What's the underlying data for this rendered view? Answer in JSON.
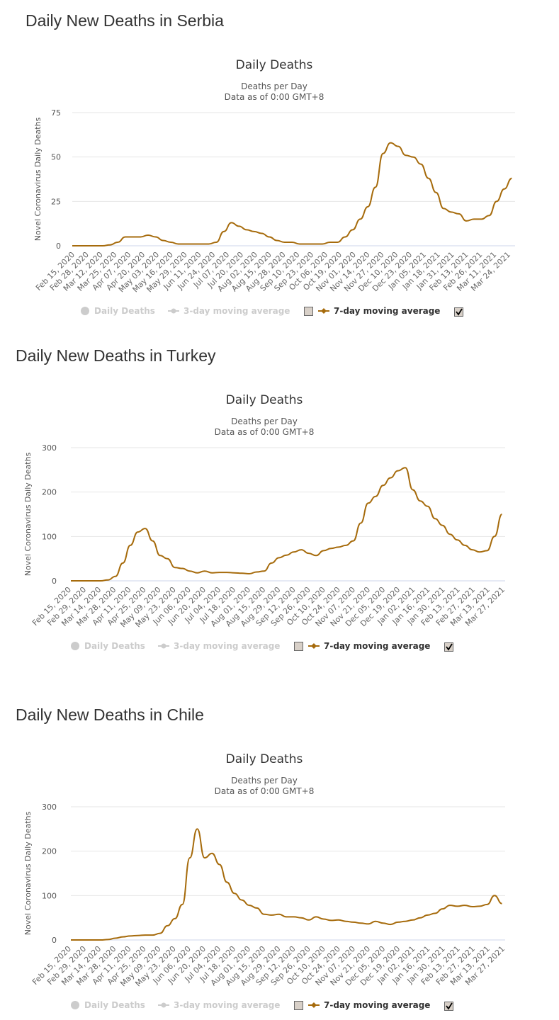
{
  "colors": {
    "series": "#a66b0c",
    "grid": "#e6e6e6",
    "legend_hidden": "#cccccc"
  },
  "chart_data": [
    {
      "type": "line",
      "heading": "Daily New Deaths in Serbia",
      "title": "Daily Deaths",
      "subtitle_lines": [
        "Deaths per Day",
        "Data as of 0:00 GMT+8"
      ],
      "ylabel": "Novel Coronavirus Daily Deaths",
      "ylim": [
        0,
        75
      ],
      "yticks": [
        "0",
        "25",
        "50",
        "75"
      ],
      "x_start": "2020-02-15",
      "x_step_days": 7,
      "x_tick_labels": [
        "Feb 15, 2020",
        "Feb 28, 2020",
        "Mar 12, 2020",
        "Mar 25, 2020",
        "Apr 07, 2020",
        "Apr 20, 2020",
        "May 03, 2020",
        "May 16, 2020",
        "May 29, 2020",
        "Jun 11, 2020",
        "Jun 24, 2020",
        "Jul 07, 2020",
        "Jul 20, 2020",
        "Aug 02, 2020",
        "Aug 15, 2020",
        "Aug 28, 2020",
        "Sep 10, 2020",
        "Sep 23, 2020",
        "Oct 06, 2020",
        "Oct 19, 2020",
        "Nov 01, 2020",
        "Nov 14, 2020",
        "Nov 27, 2020",
        "Dec 10, 2020",
        "Dec 23, 2020",
        "Jan 05, 2021",
        "Jan 18, 2021",
        "Jan 31, 2021",
        "Feb 13, 2021",
        "Feb 26, 2021",
        "Mar 11, 2021",
        "Mar 24, 2021"
      ],
      "legend": [
        {
          "label": "Daily Deaths",
          "visible": false,
          "marker": "circle"
        },
        {
          "label": "3-day moving average",
          "visible": false,
          "marker": "line-circle",
          "checkbox": false
        },
        {
          "label": "7-day moving average",
          "visible": true,
          "marker": "line-diamond",
          "checkbox": true
        }
      ],
      "series": [
        {
          "name": "7-day moving average",
          "values": [
            0,
            0,
            0,
            0,
            0,
            0.5,
            2,
            5,
            5,
            5,
            6,
            5,
            3,
            2,
            1,
            1,
            1,
            1,
            1,
            2,
            8,
            13,
            11,
            9,
            8,
            7,
            5,
            3,
            2,
            2,
            1,
            1,
            1,
            1,
            2,
            2,
            5,
            9,
            15,
            22,
            33,
            52,
            58,
            56,
            51,
            50,
            46,
            38,
            30,
            21,
            19,
            18,
            14,
            15,
            15,
            17,
            25,
            32,
            38
          ]
        }
      ]
    },
    {
      "type": "line",
      "heading": "Daily New Deaths in Turkey",
      "title": "Daily Deaths",
      "subtitle_lines": [
        "Deaths per Day",
        "Data as of 0:00 GMT+8"
      ],
      "ylabel": "Novel Coronavirus Daily Deaths",
      "ylim": [
        0,
        300
      ],
      "yticks": [
        "0",
        "100",
        "200",
        "300"
      ],
      "x_start": "2020-02-15",
      "x_step_days": 7,
      "x_tick_labels": [
        "Feb 15, 2020",
        "Feb 29, 2020",
        "Mar 14, 2020",
        "Mar 28, 2020",
        "Apr 11, 2020",
        "Apr 25, 2020",
        "May 09, 2020",
        "May 23, 2020",
        "Jun 06, 2020",
        "Jun 20, 2020",
        "Jul 04, 2020",
        "Jul 18, 2020",
        "Aug 01, 2020",
        "Aug 15, 2020",
        "Aug 29, 2020",
        "Sep 12, 2020",
        "Sep 26, 2020",
        "Oct 10, 2020",
        "Oct 24, 2020",
        "Nov 07, 2020",
        "Nov 21, 2020",
        "Dec 05, 2020",
        "Dec 19, 2020",
        "Jan 02, 2021",
        "Jan 16, 2021",
        "Jan 30, 2021",
        "Feb 13, 2021",
        "Feb 27, 2021",
        "Mar 13, 2021",
        "Mar 27, 2021"
      ],
      "legend": [
        {
          "label": "Daily Deaths",
          "visible": false,
          "marker": "circle"
        },
        {
          "label": "3-day moving average",
          "visible": false,
          "marker": "line-circle",
          "checkbox": false
        },
        {
          "label": "7-day moving average",
          "visible": true,
          "marker": "line-diamond",
          "checkbox": true
        }
      ],
      "series": [
        {
          "name": "7-day moving average",
          "values": [
            0,
            0,
            0,
            0,
            0,
            2,
            10,
            40,
            80,
            110,
            118,
            90,
            57,
            50,
            30,
            28,
            22,
            18,
            22,
            18,
            19,
            19,
            18,
            17,
            16,
            20,
            22,
            40,
            52,
            58,
            65,
            70,
            62,
            57,
            68,
            73,
            76,
            80,
            90,
            130,
            175,
            190,
            215,
            232,
            248,
            255,
            205,
            180,
            168,
            140,
            125,
            105,
            92,
            80,
            70,
            65,
            68,
            100,
            150
          ]
        }
      ]
    },
    {
      "type": "line",
      "heading": "Daily New Deaths in Chile",
      "title": "Daily Deaths",
      "subtitle_lines": [
        "Deaths per Day",
        "Data as of 0:00 GMT+8"
      ],
      "ylabel": "Novel Coronavirus Daily Deaths",
      "ylim": [
        0,
        300
      ],
      "yticks": [
        "0",
        "100",
        "200",
        "300"
      ],
      "x_start": "2020-02-15",
      "x_step_days": 7,
      "x_tick_labels": [
        "Feb 15, 2020",
        "Feb 29, 2020",
        "Mar 14, 2020",
        "Mar 28, 2020",
        "Apr 11, 2020",
        "Apr 25, 2020",
        "May 09, 2020",
        "May 23, 2020",
        "Jun 06, 2020",
        "Jun 20, 2020",
        "Jul 04, 2020",
        "Jul 18, 2020",
        "Aug 01, 2020",
        "Aug 15, 2020",
        "Aug 29, 2020",
        "Sep 12, 2020",
        "Sep 26, 2020",
        "Oct 10, 2020",
        "Oct 24, 2020",
        "Nov 07, 2020",
        "Nov 21, 2020",
        "Dec 05, 2020",
        "Dec 19, 2020",
        "Jan 02, 2021",
        "Jan 16, 2021",
        "Jan 30, 2021",
        "Feb 13, 2021",
        "Feb 27, 2021",
        "Mar 13, 2021",
        "Mar 27, 2021"
      ],
      "legend": [
        {
          "label": "Daily Deaths",
          "visible": false,
          "marker": "circle"
        },
        {
          "label": "3-day moving average",
          "visible": false,
          "marker": "line-circle",
          "checkbox": false
        },
        {
          "label": "7-day moving average",
          "visible": true,
          "marker": "line-diamond",
          "checkbox": true
        }
      ],
      "series": [
        {
          "name": "7-day moving average",
          "values": [
            0,
            0,
            0,
            0,
            0,
            1,
            4,
            7,
            9,
            10,
            11,
            11,
            15,
            32,
            48,
            80,
            185,
            250,
            185,
            195,
            170,
            130,
            105,
            90,
            78,
            72,
            58,
            56,
            58,
            52,
            52,
            50,
            45,
            52,
            47,
            44,
            45,
            42,
            40,
            38,
            36,
            42,
            38,
            35,
            40,
            42,
            45,
            50,
            56,
            60,
            70,
            78,
            76,
            78,
            75,
            76,
            80,
            100,
            82
          ]
        }
      ]
    }
  ]
}
